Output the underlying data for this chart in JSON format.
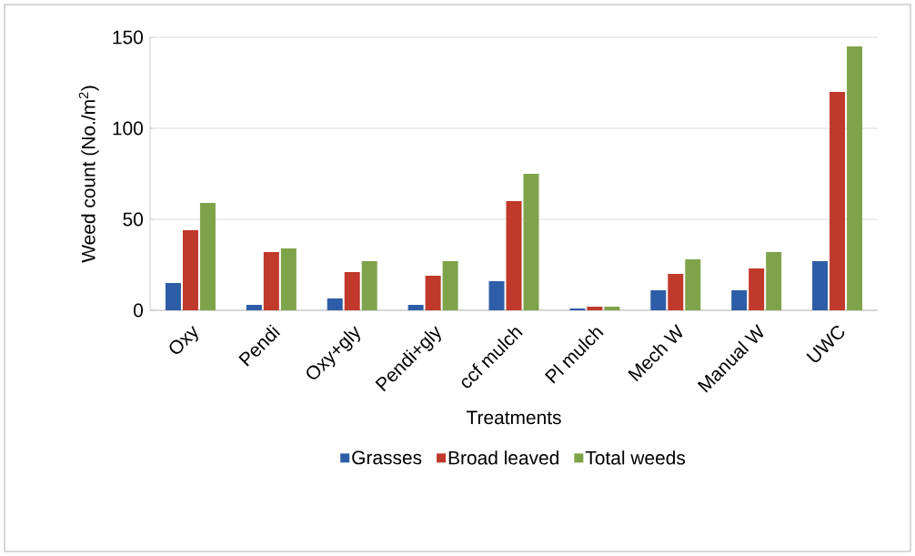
{
  "chart_data": {
    "type": "bar",
    "xlabel": "Treatments",
    "ylabel": "Weed count (No./m$^{2}$)",
    "categories": [
      "Oxy",
      "Pendi",
      "Oxy+gly",
      "Pendi+gly",
      "ccf mulch",
      "Pl mulch",
      "Mech W",
      "Manual W",
      "UWC"
    ],
    "series": [
      {
        "name": "Grasses",
        "color": "#2e5da8",
        "values": [
          15,
          3,
          6.5,
          3,
          16,
          1,
          11,
          11,
          27
        ]
      },
      {
        "name": "Broad leaved",
        "color": "#c0392b",
        "values": [
          44,
          32,
          21,
          19,
          60,
          2,
          20,
          23,
          120
        ]
      },
      {
        "name": "Total weeds",
        "color": "#7fa34a",
        "values": [
          59,
          34,
          27,
          27,
          75,
          2,
          28,
          32,
          145
        ]
      }
    ],
    "ylim": [
      0,
      150
    ],
    "yticks": [
      0,
      50,
      100,
      150
    ],
    "grid": "y",
    "legend": "bottom"
  }
}
